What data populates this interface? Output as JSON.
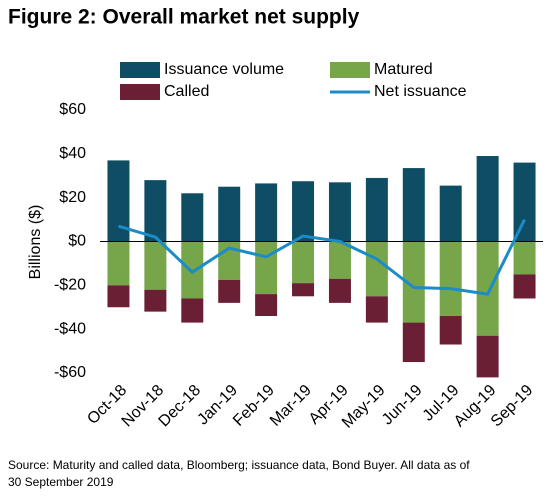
{
  "chart_data": {
    "type": "bar",
    "title": "Figure 2: Overall market net supply",
    "y_label": "Billions ($)",
    "categories": [
      "Oct-18",
      "Nov-18",
      "Dec-18",
      "Jan-19",
      "Feb-19",
      "Mar-19",
      "Apr-19",
      "May-19",
      "Jun-19",
      "Jul-19",
      "Aug-19",
      "Sep-19"
    ],
    "series": [
      {
        "name": "Issuance volume",
        "color": "#0e4d63",
        "type": "bar",
        "values": [
          37,
          28,
          22,
          25,
          26.5,
          27.5,
          27,
          29,
          33.5,
          25.5,
          39,
          36
        ]
      },
      {
        "name": "Matured",
        "color": "#77a54a",
        "type": "bar",
        "values": [
          -20,
          -22,
          -26,
          -17.5,
          -24,
          -19,
          -17,
          -25,
          -37,
          -34,
          -43,
          -15
        ]
      },
      {
        "name": "Called",
        "color": "#6b1f35",
        "type": "bar",
        "values": [
          -10,
          -10,
          -11,
          -10.5,
          -10,
          -6,
          -11,
          -12,
          -18,
          -13,
          -19,
          -11
        ]
      },
      {
        "name": "Net issuance",
        "color": "#1b8cc7",
        "type": "line",
        "values": [
          7,
          2,
          -14,
          -3,
          -7,
          2.5,
          0,
          -8,
          -21,
          -21.5,
          -24,
          10
        ]
      }
    ],
    "ylim": [
      -60,
      60
    ],
    "yticks": [
      {
        "value": 60,
        "label": "$60"
      },
      {
        "value": 40,
        "label": "$40"
      },
      {
        "value": 20,
        "label": "$20"
      },
      {
        "value": 0,
        "label": "$0"
      },
      {
        "value": -20,
        "label": "-$20"
      },
      {
        "value": -40,
        "label": "-$40"
      },
      {
        "value": -60,
        "label": "-$60"
      }
    ],
    "source_lines": [
      "Source: Maturity and called data, Bloomberg; issuance data, Bond Buyer. All data as of",
      "30 September 2019"
    ]
  }
}
